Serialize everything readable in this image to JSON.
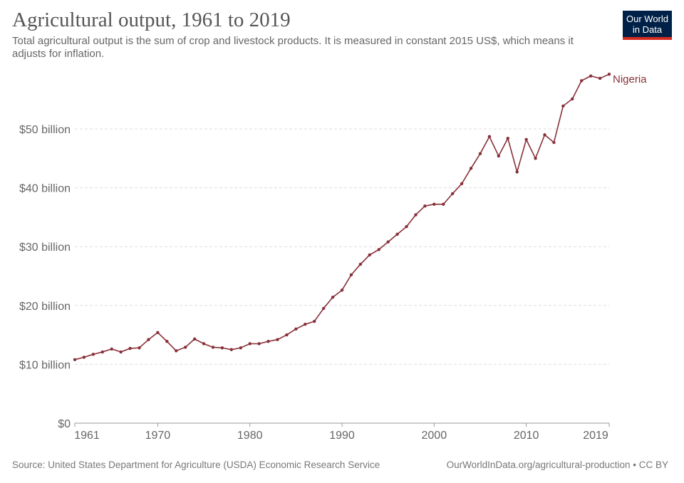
{
  "header": {
    "title": "Agricultural output, 1961 to 2019",
    "subtitle": "Total agricultural output is the sum of crop and livestock products. It is measured in constant 2015 US$, which means it adjusts for inflation.",
    "logo_line1": "Our World",
    "logo_line2": "in Data"
  },
  "footer": {
    "source": "Source: United States Department for Agriculture (USDA) Economic Research Service",
    "license": "OurWorldInData.org/agricultural-production • CC BY"
  },
  "chart_data": {
    "type": "line",
    "title": "Agricultural output, 1961 to 2019",
    "xlim": [
      1961,
      2019
    ],
    "ylim": [
      0,
      60
    ],
    "grid": true,
    "x_ticks": [
      "1961",
      "1970",
      "1980",
      "1990",
      "2000",
      "2010",
      "2019"
    ],
    "y_ticks": [
      "$0",
      "$10 billion",
      "$20 billion",
      "$30 billion",
      "$40 billion",
      "$50 billion"
    ],
    "color": "#883039",
    "series": [
      {
        "name": "Nigeria",
        "unit": "billion constant 2015 US$",
        "x": [
          1961,
          1962,
          1963,
          1964,
          1965,
          1966,
          1967,
          1968,
          1969,
          1970,
          1971,
          1972,
          1973,
          1974,
          1975,
          1976,
          1977,
          1978,
          1979,
          1980,
          1981,
          1982,
          1983,
          1984,
          1985,
          1986,
          1987,
          1988,
          1989,
          1990,
          1991,
          1992,
          1993,
          1994,
          1995,
          1996,
          1997,
          1998,
          1999,
          2000,
          2001,
          2002,
          2003,
          2004,
          2005,
          2006,
          2007,
          2008,
          2009,
          2010,
          2011,
          2012,
          2013,
          2014,
          2015,
          2016,
          2017,
          2018,
          2019
        ],
        "values": [
          10.8,
          11.2,
          11.7,
          12.1,
          12.6,
          12.1,
          12.7,
          12.8,
          14.2,
          15.4,
          13.9,
          12.3,
          12.9,
          14.3,
          13.5,
          12.9,
          12.8,
          12.5,
          12.8,
          13.5,
          13.5,
          13.9,
          14.2,
          15.0,
          16.0,
          16.8,
          17.3,
          19.5,
          21.4,
          22.6,
          25.2,
          27.0,
          28.6,
          29.5,
          30.8,
          32.1,
          33.4,
          35.4,
          36.9,
          37.2,
          37.2,
          39.0,
          40.7,
          43.3,
          45.8,
          48.7,
          45.4,
          48.4,
          42.7,
          48.2,
          45.0,
          49.0,
          47.7,
          53.9,
          55.1,
          58.2,
          59.0,
          58.6,
          59.3
        ]
      }
    ]
  }
}
